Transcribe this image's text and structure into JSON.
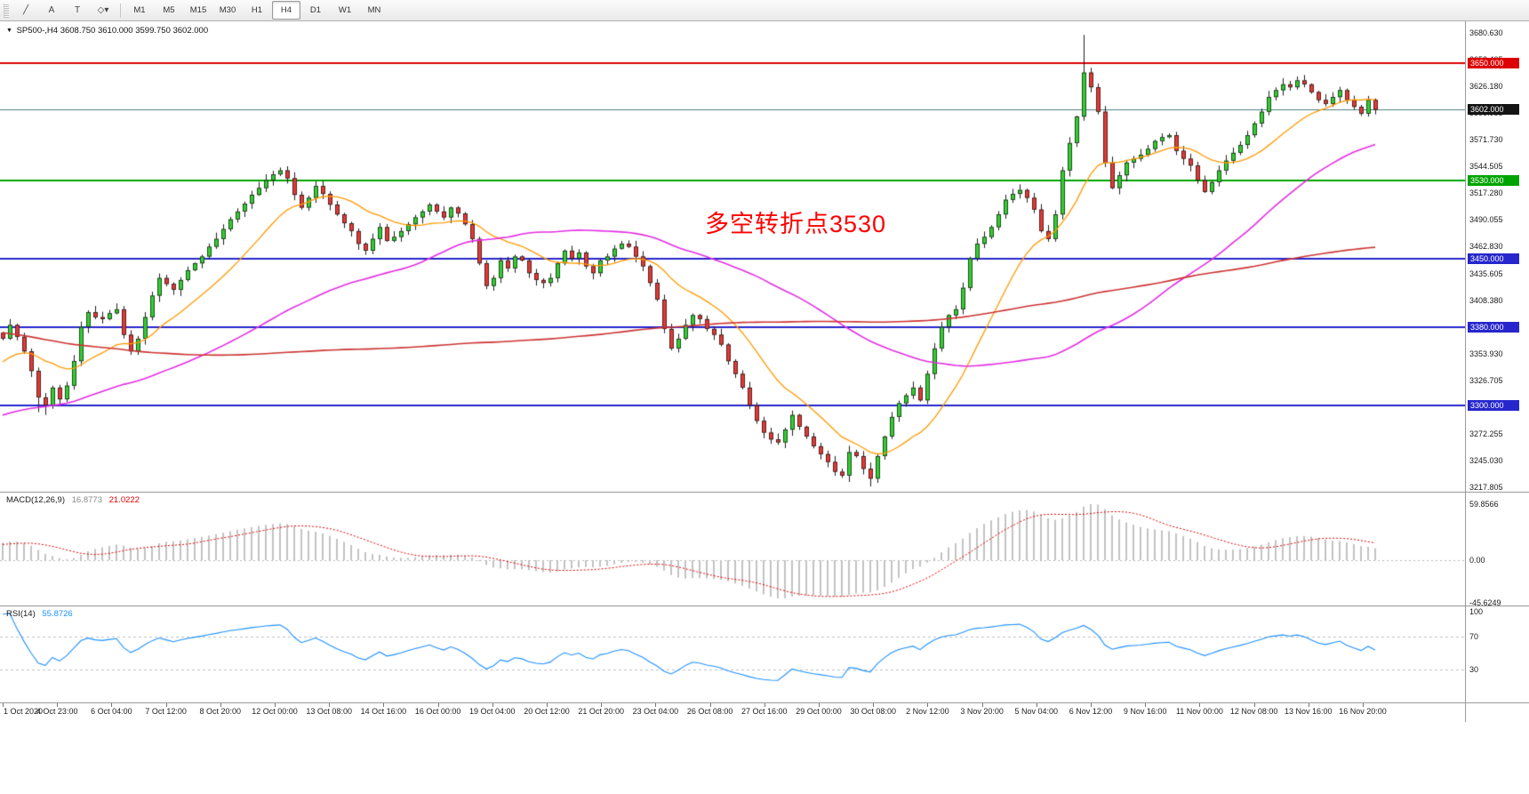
{
  "window": {
    "toolbar": {
      "tools": [
        {
          "id": "chart-tools",
          "glyph": "╱"
        },
        {
          "id": "text-label-tool",
          "glyph": "A"
        },
        {
          "id": "text-box-tool",
          "glyph": "T"
        },
        {
          "id": "shapes-dropdown",
          "glyph": "◇▾"
        }
      ],
      "timeframes": [
        "M1",
        "M5",
        "M15",
        "M30",
        "H1",
        "H4",
        "D1",
        "W1",
        "MN"
      ],
      "active_timeframe": "H4"
    }
  },
  "chart": {
    "symbol_info": {
      "expander": "▼",
      "symbol": "SP500-,H4",
      "ohlc": "3608.750 3610.000 3599.750 3602.000"
    },
    "annotation": {
      "text": "多空转折点3530",
      "color": "#fe0000"
    },
    "macd_label": {
      "name": "MACD(12,26,9)",
      "main_value": "16.8773",
      "signal_value": "21.0222"
    },
    "rsi_label": {
      "name": "RSI(14)",
      "value": "55.8726"
    }
  },
  "chart_data": {
    "type": "candlestick",
    "symbol": "SP500-",
    "timeframe": "H4",
    "quote": {
      "open": 3608.75,
      "high": 3610.0,
      "low": 3599.75,
      "close": 3602.0
    },
    "price_axis_ticks": [
      "3680.630",
      "3653.405",
      "3626.180",
      "3598.955",
      "3571.730",
      "3544.505",
      "3517.280",
      "3490.055",
      "3462.830",
      "3435.605",
      "3408.380",
      "3381.155",
      "3353.930",
      "3326.705",
      "3299.480",
      "3272.255",
      "3245.030",
      "3217.805"
    ],
    "time_axis_labels": [
      "1 Oct 2020",
      "4 Oct 23:00",
      "6 Oct 04:00",
      "7 Oct 12:00",
      "8 Oct 20:00",
      "12 Oct 00:00",
      "13 Oct 08:00",
      "14 Oct 16:00",
      "16 Oct 00:00",
      "19 Oct 04:00",
      "20 Oct 12:00",
      "21 Oct 20:00",
      "23 Oct 04:00",
      "26 Oct 08:00",
      "27 Oct 16:00",
      "29 Oct 00:00",
      "30 Oct 08:00",
      "2 Nov 12:00",
      "3 Nov 20:00",
      "5 Nov 04:00",
      "6 Nov 12:00",
      "9 Nov 16:00",
      "11 Nov 00:00",
      "12 Nov 08:00",
      "13 Nov 16:00",
      "16 Nov 20:00"
    ],
    "levels": [
      {
        "price": 3650,
        "label": "3650.000",
        "color": "#dd0000"
      },
      {
        "price": 3530,
        "label": "3530.000",
        "color": "#00a400"
      },
      {
        "price": 3450,
        "label": "3450.000",
        "color": "#2626cc"
      },
      {
        "price": 3380,
        "label": "3380.000",
        "color": "#2626cc"
      },
      {
        "price": 3300,
        "label": "3300.000",
        "color": "#2626cc"
      }
    ],
    "current_price_line": {
      "price": 3602,
      "label": "3602.000",
      "line_color": "#4d7e7e",
      "badge_color": "#141414"
    },
    "candles": {
      "up_color": "#2fd12f",
      "down_color": "#e53935",
      "outline": "#1c1c1c",
      "closes": [
        3368,
        3382,
        3370,
        3355,
        3335,
        3308,
        3300,
        3318,
        3306,
        3320,
        3345,
        3380,
        3395,
        3390,
        3388,
        3394,
        3398,
        3372,
        3355,
        3368,
        3390,
        3412,
        3430,
        3424,
        3418,
        3428,
        3438,
        3445,
        3452,
        3462,
        3470,
        3480,
        3490,
        3498,
        3506,
        3515,
        3522,
        3530,
        3536,
        3540,
        3532,
        3515,
        3502,
        3512,
        3524,
        3516,
        3505,
        3495,
        3486,
        3478,
        3465,
        3458,
        3470,
        3482,
        3468,
        3472,
        3478,
        3485,
        3492,
        3498,
        3505,
        3498,
        3492,
        3502,
        3496,
        3485,
        3470,
        3445,
        3422,
        3430,
        3448,
        3440,
        3452,
        3448,
        3435,
        3428,
        3425,
        3430,
        3445,
        3458,
        3450,
        3456,
        3442,
        3435,
        3448,
        3452,
        3460,
        3465,
        3462,
        3452,
        3442,
        3425,
        3408,
        3378,
        3358,
        3368,
        3382,
        3392,
        3388,
        3378,
        3372,
        3362,
        3345,
        3332,
        3318,
        3300,
        3284,
        3272,
        3265,
        3262,
        3275,
        3290,
        3278,
        3268,
        3258,
        3250,
        3242,
        3232,
        3228,
        3252,
        3248,
        3235,
        3225,
        3248,
        3268,
        3288,
        3302,
        3310,
        3318,
        3305,
        3332,
        3358,
        3380,
        3392,
        3398,
        3420,
        3450,
        3465,
        3472,
        3482,
        3495,
        3510,
        3516,
        3520,
        3512,
        3500,
        3478,
        3470,
        3495,
        3540,
        3568,
        3595,
        3640,
        3625,
        3600,
        3548,
        3522,
        3535,
        3548,
        3552,
        3556,
        3562,
        3570,
        3574,
        3576,
        3560,
        3552,
        3545,
        3530,
        3518,
        3528,
        3540,
        3550,
        3558,
        3566,
        3576,
        3588,
        3600,
        3615,
        3622,
        3628,
        3625,
        3632,
        3628,
        3620,
        3612,
        3608,
        3615,
        3622,
        3612,
        3605,
        3598,
        3612,
        3602
      ],
      "high_overrides": {
        "39": 3543,
        "152": 3678.5,
        "182": 3636
      },
      "low_overrides": {
        "5": 3293,
        "6": 3290,
        "122": 3217
      },
      "prehistory_anchors": [
        [
          -170,
          3555
        ],
        [
          -130,
          3480
        ],
        [
          -100,
          3420
        ],
        [
          -70,
          3310
        ],
        [
          -45,
          3245
        ],
        [
          -25,
          3280
        ],
        [
          -10,
          3330
        ],
        [
          0,
          3368
        ]
      ]
    },
    "moving_averages": [
      {
        "name": "fast-ma",
        "type": "lwma",
        "period": 20,
        "color": "#ff9900",
        "width": 1.3
      },
      {
        "name": "medium-ma",
        "type": "sma",
        "period": 55,
        "color": "#e32ce3",
        "width": 1.6
      },
      {
        "name": "slow-ma",
        "type": "sma",
        "period": 160,
        "color": "#cc3333",
        "width": 1.6
      }
    ],
    "macd": {
      "params": "12,26,9",
      "axis_labels": [
        "59.8566",
        "0.00",
        "-45.6249"
      ],
      "axis_max": 59.8566,
      "axis_min": -45.6249,
      "histogram_color": "#c2c2c2",
      "signal_color": "#e00000"
    },
    "rsi": {
      "period": 14,
      "axis_labels": [
        "100",
        "70",
        "30"
      ],
      "levels": [
        70,
        30
      ],
      "line_color": "#1e90ff",
      "level_color": "#c0c0c0"
    }
  }
}
